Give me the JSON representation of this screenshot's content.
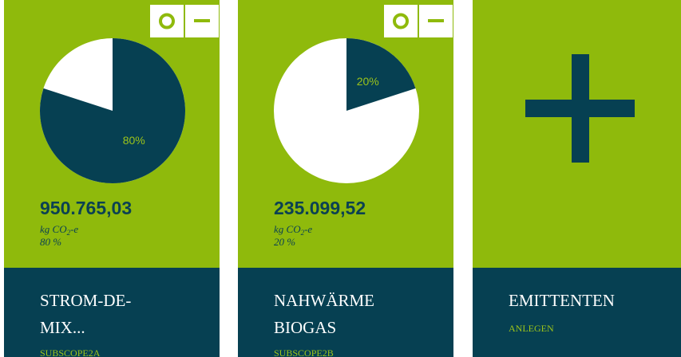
{
  "cards": [
    {
      "share": 80,
      "share_label": "80%",
      "total": "950.765,03",
      "unit": [
        "kg CO",
        "2",
        "-e"
      ],
      "share_text": "80 %",
      "title": [
        "STROM-DE-",
        "MIX..."
      ],
      "subtitle": "SUBSCOPE2A"
    },
    {
      "share": 20,
      "share_label": "20%",
      "total": "235.099,52",
      "unit": [
        "kg CO",
        "2",
        "-e"
      ],
      "share_text": "20 %",
      "title": [
        "NAHWÄRME",
        "BIOGAS"
      ],
      "subtitle": "SUBSCOPE2B"
    },
    {
      "title": [
        "EMITTENTEN"
      ],
      "subtitle": "ANLEGEN"
    }
  ]
}
